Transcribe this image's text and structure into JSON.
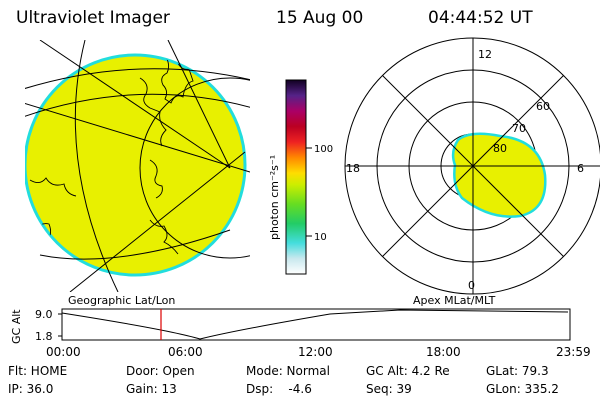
{
  "header": {
    "instrument": "Ultraviolet Imager",
    "date": "15 Aug 00",
    "time": "04:44:52 UT"
  },
  "colorbar": {
    "unit_label": "photon cm⁻²s⁻¹",
    "ticks": [
      "100",
      "10"
    ]
  },
  "polar": {
    "clock_labels": [
      "12",
      "18",
      "6",
      "0"
    ],
    "lat_labels": [
      "60",
      "70",
      "80"
    ]
  },
  "panel_labels": {
    "left": "Geographic Lat/Lon",
    "right": "Apex MLat/MLT"
  },
  "alt_plot": {
    "axis_label": "GC Alt",
    "y_ticks": [
      "9.0",
      "1.8"
    ],
    "x_ticks": [
      "00:00",
      "06:00",
      "12:00",
      "18:00",
      "23:59"
    ]
  },
  "status": {
    "row1": [
      "Flt: HOME",
      "Door: Open",
      "Mode: Normal",
      "GC Alt: 4.2 Re",
      "GLat:  79.3"
    ],
    "row2": [
      "IP: 36.0",
      "Gain: 13",
      "Dsp:    -4.6",
      "Seq: 39",
      "GLon: 335.2"
    ]
  },
  "colors": {
    "fill": "#e8f000",
    "rim": "#22dddd",
    "marker": "#dd0000"
  }
}
